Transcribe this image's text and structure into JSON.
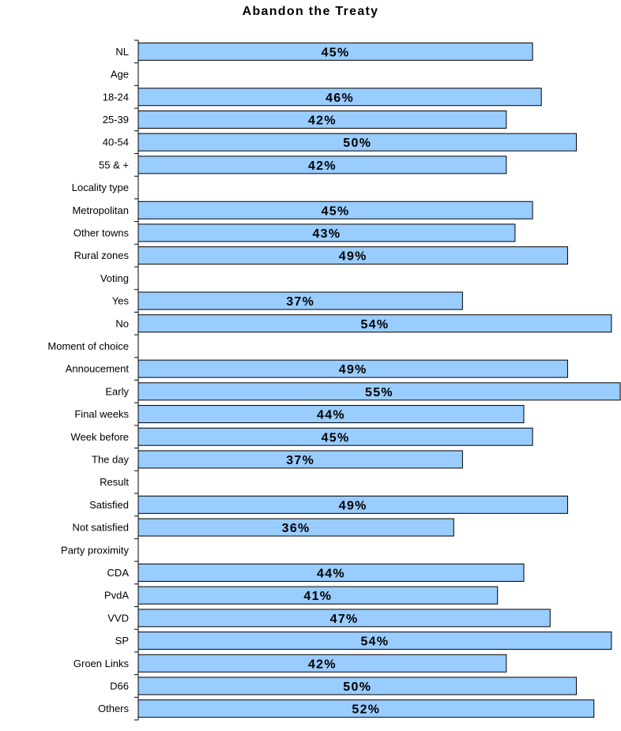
{
  "chart_data": {
    "type": "bar",
    "orientation": "horizontal",
    "title": "Abandon the Treaty",
    "xlabel": "",
    "ylabel": "",
    "xlim": [
      0,
      55
    ],
    "grid": false,
    "legend": "none",
    "colors": {
      "bar_fill": "#99ccff",
      "bar_stroke": "#000000",
      "axis": "#000000",
      "text": "#000000"
    },
    "categories": [
      "NL",
      "Age",
      "18-24",
      "25-39",
      "40-54",
      "55 & +",
      "Locality type",
      "Metropolitan",
      "Other towns",
      "Rural zones",
      "Voting",
      "Yes",
      "No",
      "Moment of choice",
      "Annoucement",
      "Early",
      "Final weeks",
      "Week before",
      "The day",
      "Result",
      "Satisfied",
      "Not satisfied",
      "Party proximity",
      "CDA",
      "PvdA",
      "VVD",
      "SP",
      "Groen Links",
      "D66",
      "Others"
    ],
    "values": [
      45,
      null,
      46,
      42,
      50,
      42,
      null,
      45,
      43,
      49,
      null,
      37,
      54,
      null,
      49,
      55,
      44,
      45,
      37,
      null,
      49,
      36,
      null,
      44,
      41,
      47,
      54,
      42,
      50,
      52
    ],
    "data_labels": [
      "45%",
      "",
      "46%",
      "42%",
      "50%",
      "42%",
      "",
      "45%",
      "43%",
      "49%",
      "",
      "37%",
      "54%",
      "",
      "49%",
      "55%",
      "44%",
      "45%",
      "37%",
      "",
      "49%",
      "36%",
      "",
      "44%",
      "41%",
      "47%",
      "54%",
      "42%",
      "50%",
      "52%"
    ]
  }
}
